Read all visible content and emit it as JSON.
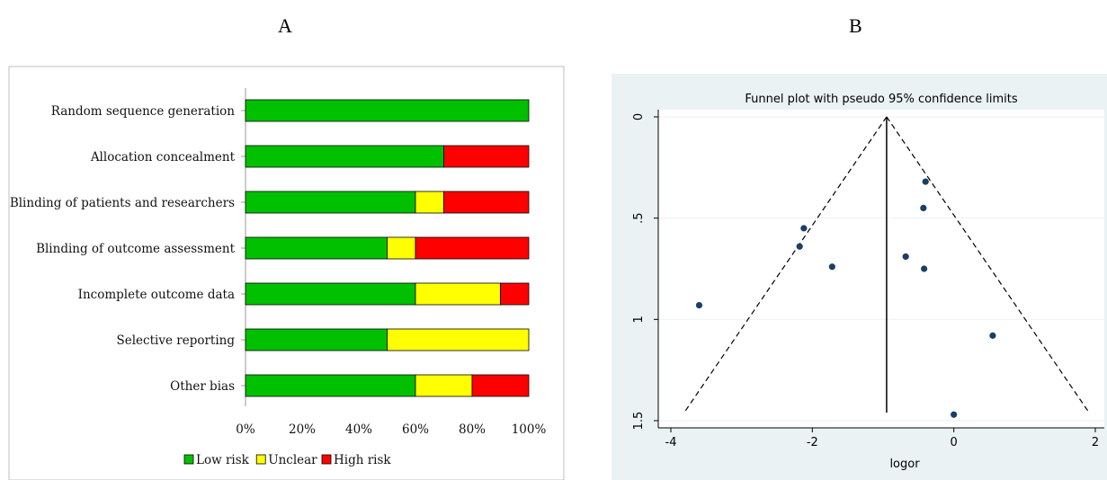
{
  "panels": {
    "a_letter": "A",
    "b_letter": "B"
  },
  "chart_data": [
    {
      "type": "bar",
      "stacked": true,
      "orientation": "horizontal",
      "categories": [
        "Random sequence generation",
        "Allocation concealment",
        "Blinding of patients and researchers",
        "Blinding of outcome assessment",
        "Incomplete outcome data",
        "Selective reporting",
        "Other bias"
      ],
      "series": [
        {
          "name": "Low risk",
          "color": "#00c000",
          "values": [
            100,
            70,
            60,
            50,
            60,
            50,
            60
          ]
        },
        {
          "name": "Unclear",
          "color": "#ffff00",
          "values": [
            0,
            0,
            10,
            10,
            30,
            50,
            20
          ]
        },
        {
          "name": "High risk",
          "color": "#ff0000",
          "values": [
            0,
            30,
            30,
            40,
            10,
            0,
            20
          ]
        }
      ],
      "xlim": [
        0,
        100
      ],
      "xticks": [
        "0%",
        "20%",
        "40%",
        "60%",
        "80%",
        "100%"
      ],
      "legend": "bottom"
    },
    {
      "type": "scatter",
      "title": "Funnel plot with pseudo 95% confidence limits",
      "xlabel": "logor",
      "ylabel": "",
      "xlim": [
        -4,
        2
      ],
      "ylim": [
        0,
        1.5
      ],
      "y_reversed": true,
      "xticks": [
        "-4",
        "-2",
        "0",
        "2"
      ],
      "yticks": [
        "0",
        ".5",
        "1",
        "1.5"
      ],
      "pooled_estimate": -0.95,
      "points": [
        {
          "x": -0.4,
          "y": 0.32
        },
        {
          "x": -0.43,
          "y": 0.45
        },
        {
          "x": -2.12,
          "y": 0.55
        },
        {
          "x": -2.18,
          "y": 0.64
        },
        {
          "x": -0.68,
          "y": 0.69
        },
        {
          "x": -1.72,
          "y": 0.74
        },
        {
          "x": -0.42,
          "y": 0.75
        },
        {
          "x": -3.6,
          "y": 0.93
        },
        {
          "x": 0.55,
          "y": 1.08
        },
        {
          "x": 0.0,
          "y": 1.47
        }
      ],
      "colors": {
        "background": "#eaf2f3",
        "point": "#1a3f66"
      }
    }
  ]
}
